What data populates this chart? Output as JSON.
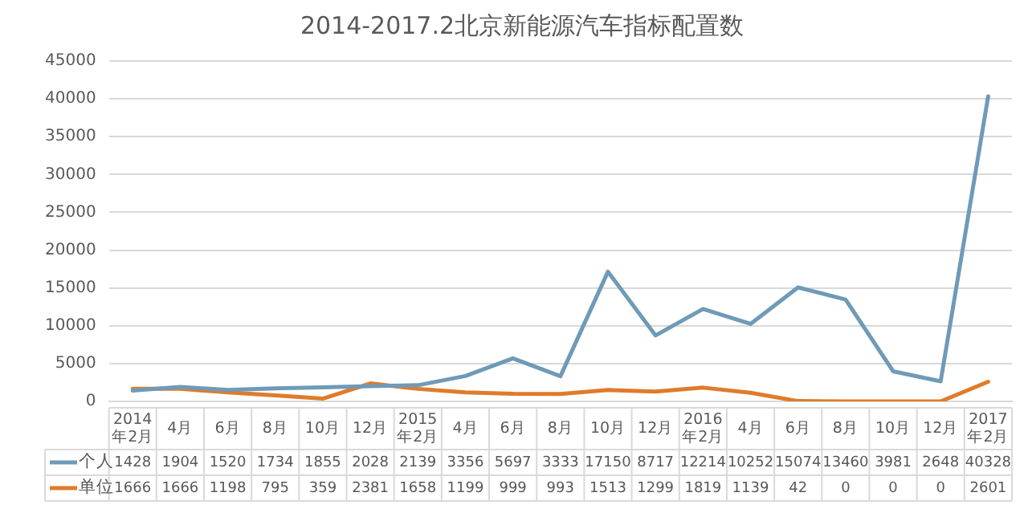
{
  "chart_data": {
    "type": "line",
    "title": "2014-2017.2北京新能源汽车指标配置数",
    "categories": [
      "2014\n年2月",
      "4月",
      "6月",
      "8月",
      "10月",
      "12月",
      "2015\n年2月",
      "4月",
      "6月",
      "8月",
      "10月",
      "12月",
      "2016\n年2月",
      "4月",
      "6月",
      "8月",
      "10月",
      "12月",
      "2017\n年2月"
    ],
    "series": [
      {
        "name": "个人",
        "color": "#6f9ab8",
        "values": [
          1428,
          1904,
          1520,
          1734,
          1855,
          2028,
          2139,
          3356,
          5697,
          3333,
          17150,
          8717,
          12214,
          10252,
          15074,
          13460,
          3981,
          2648,
          40328
        ]
      },
      {
        "name": "单位",
        "color": "#e07b2a",
        "values": [
          1666,
          1666,
          1198,
          795,
          359,
          2381,
          1658,
          1199,
          999,
          993,
          1513,
          1299,
          1819,
          1139,
          42,
          0,
          0,
          0,
          2601
        ]
      }
    ],
    "ylim": [
      0,
      45000
    ],
    "yticks": [
      0,
      5000,
      10000,
      15000,
      20000,
      25000,
      30000,
      35000,
      40000,
      45000
    ],
    "grid": "y",
    "legend": "bottom",
    "data_labels": true,
    "marker": "none",
    "line_style": "solid"
  }
}
